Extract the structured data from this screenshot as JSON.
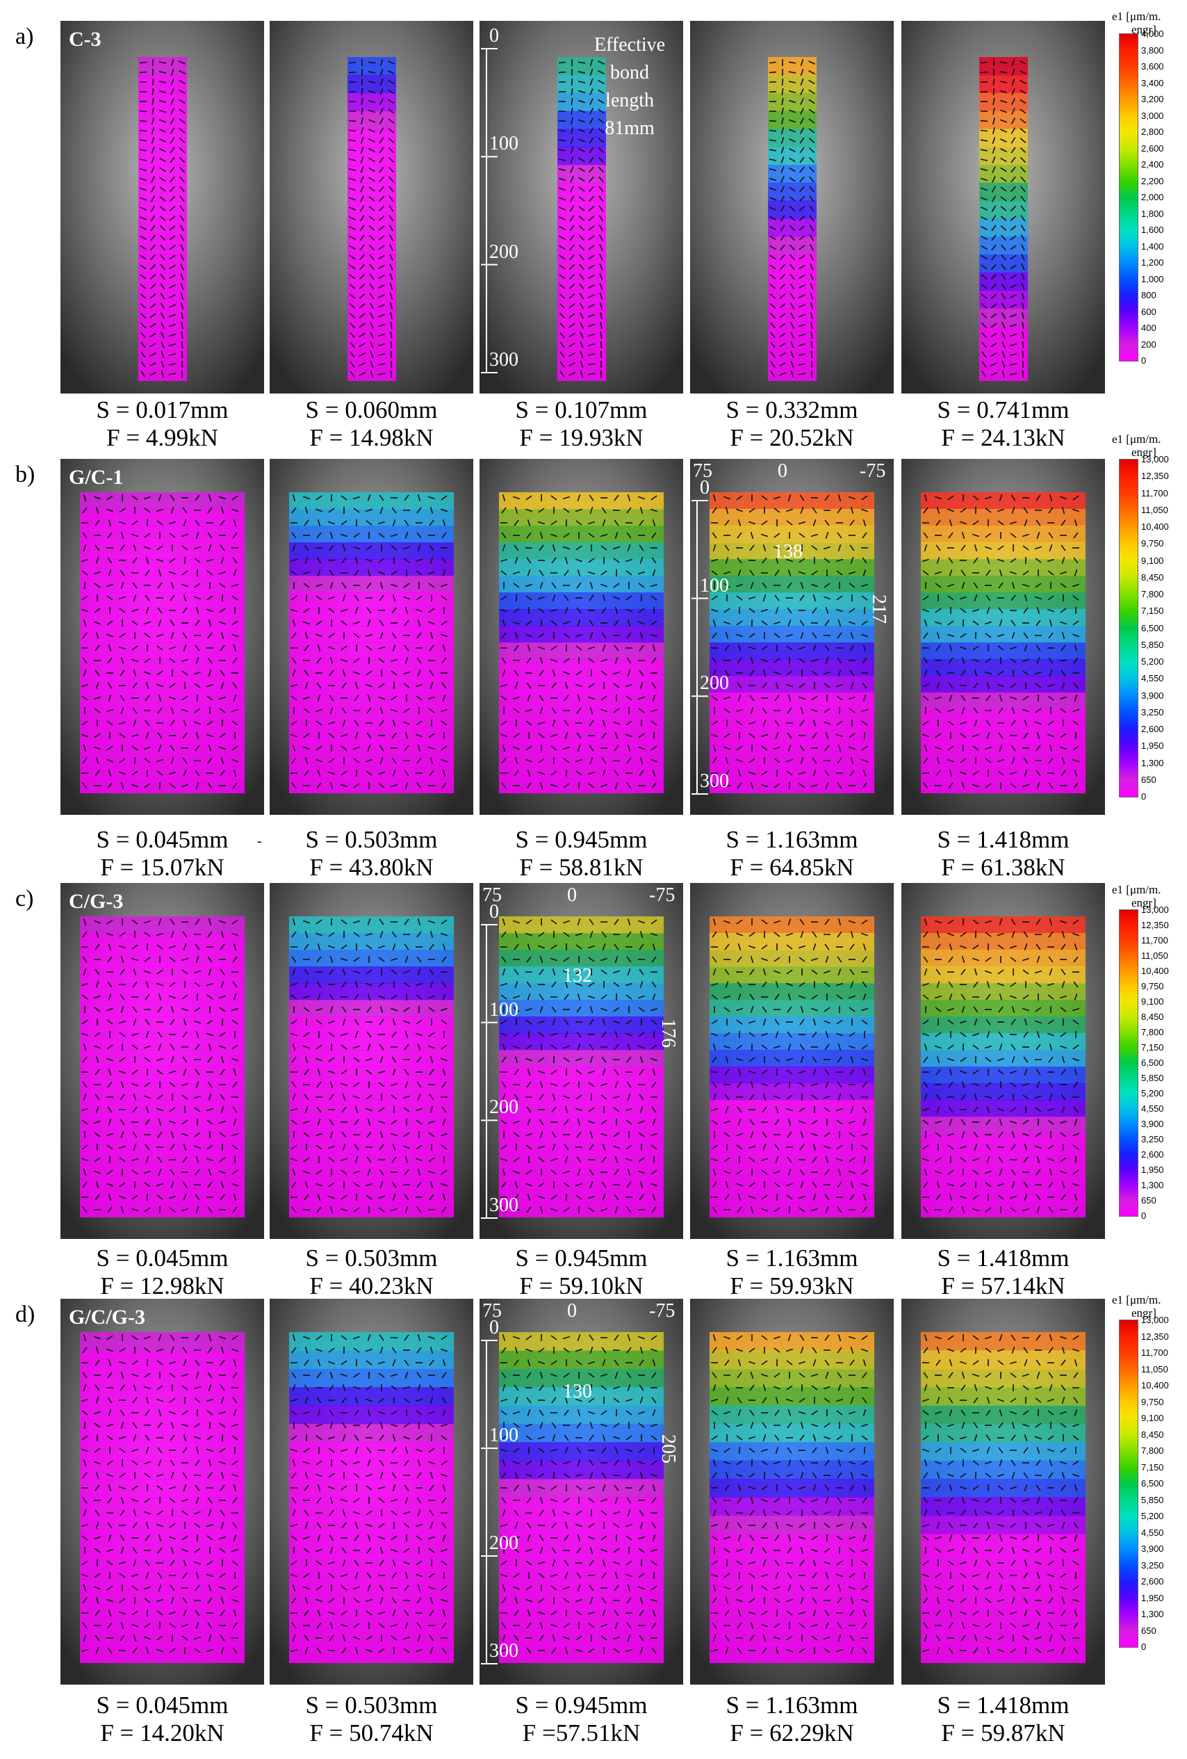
{
  "legend": {
    "title_line1": "e1 [μm/m.",
    "title_line2": "engr]",
    "ticks_a": [
      "4,000",
      "3,800",
      "3,600",
      "3,400",
      "3,200",
      "3,000",
      "2,800",
      "2,600",
      "2,400",
      "2,200",
      "2,000",
      "1,800",
      "1,600",
      "1,400",
      "1,200",
      "1,000",
      "800",
      "600",
      "400",
      "200",
      "0"
    ],
    "ticks_bcd": [
      "13,000",
      "12,350",
      "11,700",
      "11,050",
      "10,400",
      "9,750",
      "9,100",
      "8,450",
      "7,800",
      "7,150",
      "6,500",
      "5,850",
      "5,200",
      "4,550",
      "3,900",
      "3,250",
      "2,600",
      "1,950",
      "1,300",
      "650",
      "0"
    ]
  },
  "rows": [
    {
      "label": "a)",
      "specimen": "C-3",
      "frames": [
        {
          "s": "S = 0.017mm",
          "f": "F = 4.99kN",
          "strain": 0.05
        },
        {
          "s": "S = 0.060mm",
          "f": "F = 14.98kN",
          "strain": 0.25
        },
        {
          "s": "S = 0.107mm",
          "f": "F = 19.93kN",
          "strain": 0.45
        },
        {
          "s": "S = 0.332mm",
          "f": "F = 20.52kN",
          "strain": 0.7
        },
        {
          "s": "S = 0.741mm",
          "f": "F = 24.13kN",
          "strain": 0.95
        }
      ],
      "scale_ticks": [
        "0",
        "100",
        "200",
        "300"
      ],
      "annotation": {
        "line1": "Effective",
        "line2": "bond",
        "line3": "length",
        "line4": "81mm"
      }
    },
    {
      "label": "b)",
      "specimen": "G/C-1",
      "frames": [
        {
          "s": "S = 0.045mm",
          "f": "F = 15.07kN",
          "strain": 0.05
        },
        {
          "s": "S = 0.503mm",
          "f": "F = 43.80kN",
          "strain": 0.4
        },
        {
          "s": "S = 0.945mm",
          "f": "F = 58.81kN",
          "strain": 0.65
        },
        {
          "s": "S = 1.163mm",
          "f": "F = 64.85kN",
          "strain": 0.8
        },
        {
          "s": "S = 1.418mm",
          "f": "F = 61.38kN",
          "strain": 0.85
        }
      ],
      "scale_ticks": [
        "0",
        "100",
        "200",
        "300"
      ],
      "horiz_ticks": [
        "75",
        "0",
        "-75"
      ],
      "dims": {
        "width": "138",
        "length": "217"
      },
      "stray_mark": "-"
    },
    {
      "label": "c)",
      "specimen": "C/G-3",
      "frames": [
        {
          "s": "S = 0.045mm",
          "f": "F = 12.98kN",
          "strain": 0.05
        },
        {
          "s": "S = 0.503mm",
          "f": "F = 40.23kN",
          "strain": 0.4
        },
        {
          "s": "S = 0.945mm",
          "f": "F = 59.10kN",
          "strain": 0.6
        },
        {
          "s": "S = 1.163mm",
          "f": "F = 59.93kN",
          "strain": 0.75
        },
        {
          "s": "S = 1.418mm",
          "f": "F = 57.14kN",
          "strain": 0.85
        }
      ],
      "scale_ticks": [
        "0",
        "100",
        "200",
        "300"
      ],
      "horiz_ticks": [
        "75",
        "0",
        "-75"
      ],
      "dims": {
        "width": "132",
        "length": "176"
      }
    },
    {
      "label": "d)",
      "specimen": "G/C/G-3",
      "frames": [
        {
          "s": "S = 0.045mm",
          "f": "F = 14.20kN",
          "strain": 0.05
        },
        {
          "s": "S = 0.503mm",
          "f": "F = 50.74kN",
          "strain": 0.4
        },
        {
          "s": "S = 0.945mm",
          "f": "F =57.51kN",
          "strain": 0.6
        },
        {
          "s": "S = 1.163mm",
          "f": "F = 62.29kN",
          "strain": 0.7
        },
        {
          "s": "S = 1.418mm",
          "f": "F = 59.87kN",
          "strain": 0.75
        }
      ],
      "scale_ticks": [
        "0",
        "100",
        "200",
        "300"
      ],
      "horiz_ticks": [
        "75",
        "0",
        "-75"
      ],
      "dims": {
        "width": "130",
        "length": "205"
      }
    }
  ],
  "colors": {
    "scale": [
      "#ff00ff",
      "#d61fe0",
      "#a400ff",
      "#5a00ff",
      "#1c1cff",
      "#0052ff",
      "#008cff",
      "#00c2e6",
      "#00e0c0",
      "#00d888",
      "#00c94a",
      "#3ad200",
      "#82e000",
      "#c8e800",
      "#f2e800",
      "#ffc800",
      "#ff9a00",
      "#ff6a00",
      "#ff3c00",
      "#ff1e00",
      "#e00000"
    ]
  }
}
